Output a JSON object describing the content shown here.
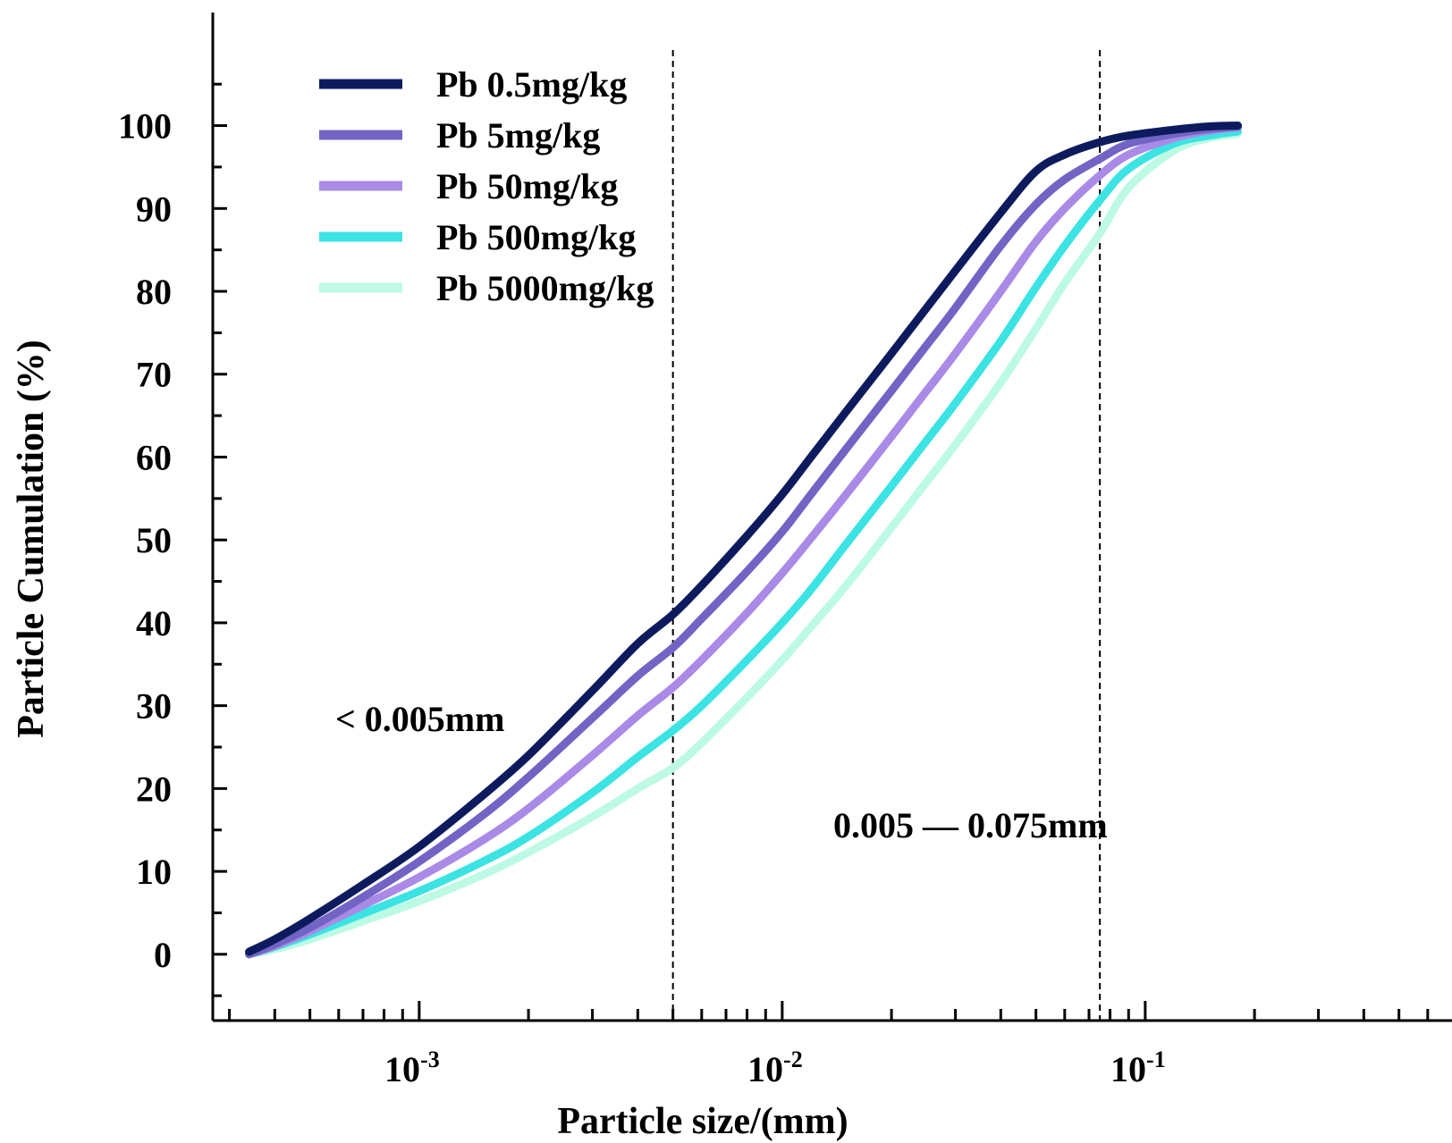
{
  "chart_data": {
    "type": "line",
    "title": "",
    "xlabel": "Particle size/(mm)",
    "ylabel": "Particle Cumulation (%)",
    "xscale": "log",
    "xlim": [
      0.00027,
      0.7
    ],
    "ylim": [
      -8,
      113
    ],
    "y_ticks": [
      0,
      10,
      20,
      30,
      40,
      50,
      60,
      70,
      80,
      90,
      100
    ],
    "y_tick_labels": [
      "0",
      "10",
      "20",
      "30",
      "40",
      "50",
      "60",
      "70",
      "80",
      "90",
      "100"
    ],
    "x_ticks": [
      {
        "value": 0.001,
        "base": "10",
        "exp": "-3"
      },
      {
        "value": 0.01,
        "base": "10",
        "exp": "-2"
      },
      {
        "value": 0.1,
        "base": "10",
        "exp": "-1"
      }
    ],
    "vlines": [
      0.005,
      0.075
    ],
    "annotations": {
      "left_region": "< 0.005mm",
      "mid_region": "0.005 — 0.075mm"
    },
    "legend_position": "top-left",
    "series": [
      {
        "name": "Pb 0.5mg/kg",
        "color": "#0d1b5e",
        "x": [
          0.00034,
          0.0004,
          0.0005,
          0.0007,
          0.001,
          0.0015,
          0.002,
          0.003,
          0.004,
          0.005,
          0.006,
          0.008,
          0.01,
          0.012,
          0.015,
          0.02,
          0.025,
          0.03,
          0.04,
          0.05,
          0.06,
          0.075,
          0.09,
          0.12,
          0.15,
          0.18
        ],
        "y": [
          0.3,
          1.8,
          4.3,
          8.4,
          13.0,
          19.2,
          24.0,
          31.8,
          37.5,
          41.0,
          44.5,
          50.5,
          55.5,
          60.0,
          65.5,
          72.5,
          78.0,
          82.5,
          89.5,
          94.5,
          96.5,
          98.0,
          98.8,
          99.5,
          99.9,
          100.0
        ]
      },
      {
        "name": "Pb 5mg/kg",
        "color": "#7264c4",
        "x": [
          0.00034,
          0.0004,
          0.0005,
          0.0007,
          0.001,
          0.0015,
          0.002,
          0.003,
          0.004,
          0.005,
          0.006,
          0.008,
          0.01,
          0.012,
          0.015,
          0.02,
          0.025,
          0.03,
          0.04,
          0.05,
          0.06,
          0.075,
          0.09,
          0.12,
          0.15,
          0.18
        ],
        "y": [
          0.0,
          1.2,
          3.2,
          6.9,
          11.2,
          16.8,
          21.4,
          28.5,
          33.6,
          37.0,
          40.5,
          46.2,
          51.0,
          55.5,
          61.0,
          68.0,
          73.5,
          78.0,
          85.5,
          90.5,
          93.5,
          96.0,
          97.8,
          99.0,
          99.6,
          99.9
        ]
      },
      {
        "name": "Pb 50mg/kg",
        "color": "#a98ae6",
        "x": [
          0.00034,
          0.0004,
          0.0005,
          0.0007,
          0.001,
          0.0015,
          0.002,
          0.003,
          0.004,
          0.005,
          0.006,
          0.008,
          0.01,
          0.012,
          0.015,
          0.02,
          0.025,
          0.03,
          0.04,
          0.05,
          0.06,
          0.075,
          0.09,
          0.12,
          0.15,
          0.18
        ],
        "y": [
          0.0,
          1.0,
          2.8,
          5.9,
          9.3,
          13.8,
          17.6,
          24.0,
          28.8,
          32.2,
          35.5,
          41.2,
          46.0,
          50.2,
          55.5,
          62.5,
          68.0,
          72.5,
          80.0,
          86.0,
          90.0,
          94.0,
          96.5,
          98.5,
          99.4,
          99.8
        ]
      },
      {
        "name": "Pb 500mg/kg",
        "color": "#3ce3e3",
        "x": [
          0.00034,
          0.0004,
          0.0005,
          0.0007,
          0.001,
          0.0015,
          0.002,
          0.003,
          0.004,
          0.005,
          0.006,
          0.008,
          0.01,
          0.012,
          0.015,
          0.02,
          0.025,
          0.03,
          0.04,
          0.05,
          0.06,
          0.075,
          0.09,
          0.12,
          0.15,
          0.18
        ],
        "y": [
          0.0,
          0.9,
          2.4,
          4.9,
          7.6,
          11.2,
          14.2,
          19.5,
          23.8,
          27.0,
          30.0,
          35.5,
          40.0,
          44.0,
          49.5,
          56.5,
          62.0,
          66.5,
          74.0,
          80.5,
          85.5,
          91.0,
          94.8,
          97.8,
          98.8,
          99.3
        ]
      },
      {
        "name": "Pb 5000mg/kg",
        "color": "#bdfae3",
        "x": [
          0.00034,
          0.0004,
          0.0005,
          0.0007,
          0.001,
          0.0015,
          0.002,
          0.003,
          0.004,
          0.005,
          0.006,
          0.008,
          0.01,
          0.012,
          0.015,
          0.02,
          0.025,
          0.03,
          0.04,
          0.05,
          0.06,
          0.075,
          0.09,
          0.12,
          0.15,
          0.18
        ],
        "y": [
          0.0,
          0.6,
          1.8,
          4.0,
          6.4,
          9.6,
          12.3,
          16.6,
          20.0,
          22.5,
          25.5,
          31.0,
          35.5,
          39.5,
          44.5,
          51.5,
          57.0,
          61.5,
          69.0,
          75.5,
          81.0,
          87.0,
          92.5,
          97.0,
          98.5,
          99.0
        ]
      }
    ]
  }
}
